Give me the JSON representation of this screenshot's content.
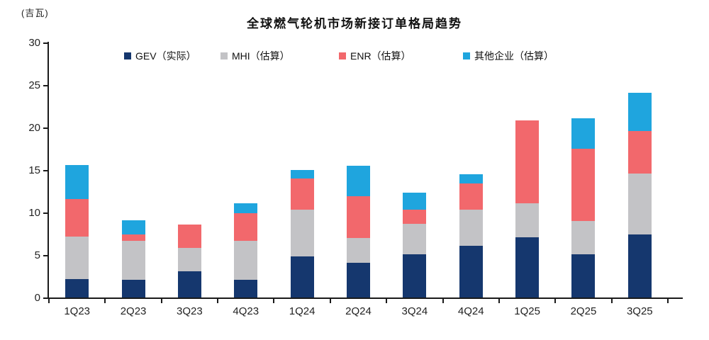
{
  "unit_label": "(吉瓦)",
  "title": "全球燃气轮机市场新接订单格局趋势",
  "colors": {
    "gev": "#15376E",
    "mhi": "#C3C3C6",
    "enr": "#F2686C",
    "other": "#1FA5DE",
    "axis": "#1a1a1a"
  },
  "chart_data": {
    "type": "bar",
    "stacked": true,
    "title": "全球燃气轮机市场新接订单格局趋势",
    "ylabel": "(吉瓦)",
    "xlabel": "",
    "ylim": [
      0,
      30
    ],
    "y_ticks": [
      0,
      5,
      10,
      15,
      20,
      25,
      30
    ],
    "grid": false,
    "legend_position": "top",
    "categories": [
      "1Q23",
      "2Q23",
      "3Q23",
      "4Q23",
      "1Q24",
      "2Q24",
      "3Q24",
      "4Q24",
      "1Q25",
      "2Q25",
      "3Q25"
    ],
    "series": [
      {
        "name": "GEV（实际）",
        "color": "#15376E",
        "values": [
          2.2,
          2.1,
          3.1,
          2.1,
          4.8,
          4.1,
          5.1,
          6.1,
          7.1,
          5.1,
          7.4
        ]
      },
      {
        "name": "MHI（估算）",
        "color": "#C3C3C6",
        "values": [
          5.0,
          4.6,
          2.7,
          4.6,
          5.5,
          2.9,
          3.6,
          4.2,
          4.0,
          3.9,
          7.2
        ]
      },
      {
        "name": "ENR（估算）",
        "color": "#F2686C",
        "values": [
          4.4,
          0.7,
          2.8,
          3.2,
          3.7,
          4.9,
          1.6,
          3.1,
          9.7,
          8.5,
          5.0
        ]
      },
      {
        "name": "其他企业（估算）",
        "color": "#1FA5DE",
        "values": [
          4.0,
          1.7,
          0.0,
          1.2,
          1.0,
          3.6,
          2.0,
          1.1,
          0.0,
          3.6,
          4.5
        ]
      }
    ],
    "totals": [
      15.6,
      9.1,
      8.6,
      11.1,
      15.0,
      15.5,
      12.3,
      14.5,
      20.8,
      21.1,
      24.1
    ]
  }
}
